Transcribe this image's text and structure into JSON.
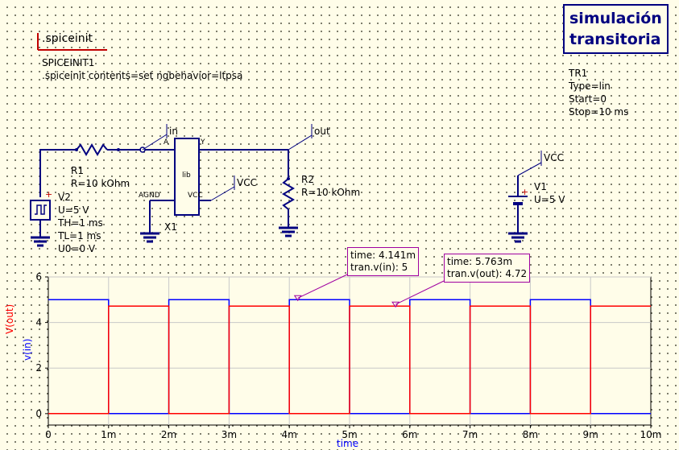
{
  "spiceinit": {
    "header": ".spiceinit",
    "name": "SPICEINIT1",
    "contents": ".spiceinit contents=set ngbehavior=ltpsa"
  },
  "sim": {
    "title_line1": "simulación",
    "title_line2": "transitoria",
    "name": "TR1",
    "type": "Type=lin",
    "start": "Start=0",
    "stop": "Stop=10 ms"
  },
  "labels": {
    "in": "in",
    "out": "out",
    "vcc_x1": "VCC",
    "vcc_v1": "VCC",
    "pin_a": "A",
    "pin_y": "Y",
    "pin_agnd": "AGND",
    "pin_vcc": "VCC",
    "lib": "lib",
    "x1": "X1"
  },
  "r1": {
    "name": "R1",
    "value": "R=10 kOhm"
  },
  "r2": {
    "name": "R2",
    "value": "R=10 kOhm"
  },
  "v2": {
    "name": "V2",
    "u": "U=5 V",
    "th": "TH=1 ms",
    "tl": "TL=1 ms",
    "u0": "U0=0 V"
  },
  "v1": {
    "name": "V1",
    "u": "U=5 V"
  },
  "markers": [
    {
      "line1": "time: 4.141m",
      "line2": "tran.v(in): 5"
    },
    {
      "line1": "time: 5.763m",
      "line2": "tran.v(out): 4.72"
    }
  ],
  "colors": {
    "wire": "#000080",
    "vin": "#0000ff",
    "vout": "#ff0000",
    "marker": "#a000a0"
  },
  "chart_data": {
    "type": "line",
    "xlabel": "time",
    "ylabel_series": [
      "V(out)",
      "v(in)"
    ],
    "x_ticks": [
      "0",
      "1m",
      "2m",
      "3m",
      "4m",
      "5m",
      "6m",
      "7m",
      "8m",
      "9m",
      "10m"
    ],
    "y_ticks": [
      "0",
      "2",
      "4",
      "6"
    ],
    "xlim": [
      0,
      0.01
    ],
    "ylim": [
      -0.5,
      6
    ],
    "grid": true,
    "series": [
      {
        "name": "v(in)",
        "color": "#0000ff",
        "x": [
          0,
          0.001,
          0.001,
          0.002,
          0.002,
          0.003,
          0.003,
          0.004,
          0.004,
          0.005,
          0.005,
          0.006,
          0.006,
          0.007,
          0.007,
          0.008,
          0.008,
          0.009,
          0.009,
          0.01
        ],
        "y": [
          5,
          5,
          0,
          0,
          5,
          5,
          0,
          0,
          5,
          5,
          0,
          0,
          5,
          5,
          0,
          0,
          5,
          5,
          0,
          0
        ]
      },
      {
        "name": "V(out)",
        "color": "#ff0000",
        "x": [
          0,
          0.001,
          0.001,
          0.002,
          0.002,
          0.003,
          0.003,
          0.004,
          0.004,
          0.005,
          0.005,
          0.006,
          0.006,
          0.007,
          0.007,
          0.008,
          0.008,
          0.009,
          0.009,
          0.01
        ],
        "y": [
          0,
          0,
          4.72,
          4.72,
          0,
          0,
          4.72,
          4.72,
          0,
          0,
          4.72,
          4.72,
          0,
          0,
          4.72,
          4.72,
          0,
          0,
          4.72,
          4.72
        ]
      }
    ],
    "markers": [
      {
        "x": 0.004141,
        "y": 5,
        "series": "v(in)"
      },
      {
        "x": 0.005763,
        "y": 4.72,
        "series": "V(out)"
      }
    ]
  }
}
